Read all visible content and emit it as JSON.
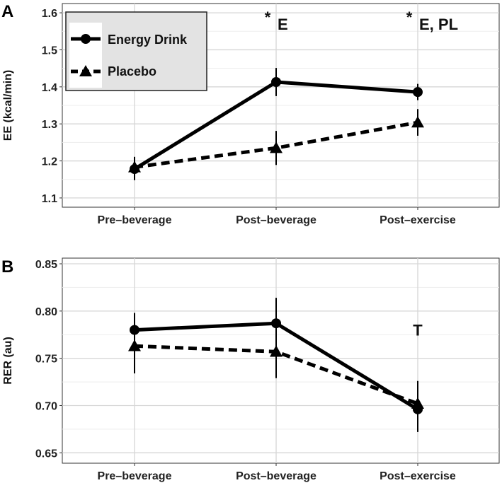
{
  "chart_data": [
    {
      "type": "line",
      "panel_label": "A",
      "ylabel": "EE (kcal/min)",
      "categories": [
        "Pre–beverage",
        "Post–beverage",
        "Post–exercise"
      ],
      "ylim": [
        1.075,
        1.625
      ],
      "yticks": [
        1.1,
        1.2,
        1.3,
        1.4,
        1.5,
        1.6
      ],
      "ytick_labels": [
        "1.1",
        "1.2",
        "1.3",
        "1.4",
        "1.5",
        "1.6"
      ],
      "grid": true,
      "series": [
        {
          "name": "Energy Drink",
          "style": "solid",
          "marker": "circle",
          "values": [
            1.178,
            1.413,
            1.386
          ],
          "err": [
            0.03,
            0.038,
            0.022
          ]
        },
        {
          "name": "Placebo",
          "style": "dashed",
          "marker": "triangle",
          "values": [
            1.183,
            1.235,
            1.304
          ],
          "err": [
            0.028,
            0.046,
            0.036
          ]
        }
      ],
      "annotations": [
        {
          "category_index": 1,
          "y": 1.57,
          "text": "E"
        },
        {
          "category_index": 2,
          "y": 1.57,
          "text": "E, PL"
        }
      ],
      "legend": {
        "position": "top-left",
        "entries": [
          "Energy Drink",
          "Placebo"
        ]
      }
    },
    {
      "type": "line",
      "panel_label": "B",
      "ylabel": "RER (au)",
      "categories": [
        "Pre–beverage",
        "Post–beverage",
        "Post–exercise"
      ],
      "ylim": [
        0.639,
        0.856
      ],
      "yticks": [
        0.65,
        0.7,
        0.75,
        0.8,
        0.85
      ],
      "ytick_labels": [
        "0.65",
        "0.70",
        "0.75",
        "0.80",
        "0.85"
      ],
      "grid": true,
      "series": [
        {
          "name": "Energy Drink",
          "style": "solid",
          "marker": "circle",
          "values": [
            0.78,
            0.787,
            0.696
          ],
          "err": [
            0.018,
            0.027,
            0.024
          ]
        },
        {
          "name": "Placebo",
          "style": "dashed",
          "marker": "triangle",
          "values": [
            0.763,
            0.757,
            0.702
          ],
          "err": [
            0.029,
            0.028,
            0.024
          ]
        }
      ],
      "annotations": [
        {
          "category_index": 2,
          "y": 0.78,
          "text": "T"
        }
      ]
    }
  ]
}
